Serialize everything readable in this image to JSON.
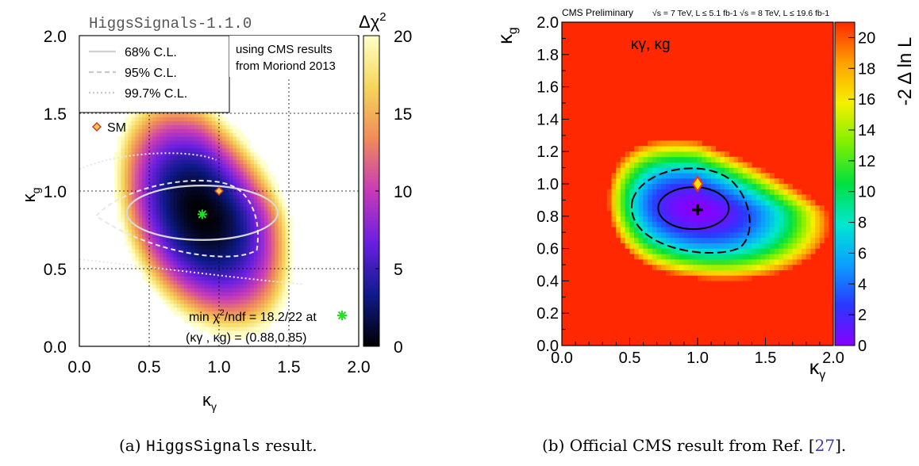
{
  "chart_data": [
    {
      "type": "heatmap",
      "title": "HiggsSignals-1.1.0",
      "annotation": "using CMS results\nfrom Moriond 2013",
      "xlabel": "κγ",
      "ylabel": "κg",
      "xlim": [
        0.0,
        2.0
      ],
      "ylim": [
        0.0,
        2.0
      ],
      "x_ticks": [
        "0.0",
        "0.5",
        "1.0",
        "1.5",
        "2.0"
      ],
      "y_ticks": [
        "0.0",
        "0.5",
        "1.0",
        "1.5",
        "2.0"
      ],
      "grid": true,
      "colorbar": {
        "label": "Δχ2",
        "range": [
          0,
          20
        ],
        "ticks": [
          "0",
          "5",
          "10",
          "15",
          "20"
        ],
        "colors": [
          "#000000",
          "#0f1a8c",
          "#6a1fe0",
          "#c73ab8",
          "#f08a5a",
          "#f6d65a",
          "#ffffc8"
        ]
      },
      "legend": {
        "placement": "top-left",
        "entries": [
          {
            "label": "68% C.L.",
            "style": "solid"
          },
          {
            "label": "95% C.L.",
            "style": "dashed"
          },
          {
            "label": "99.7% C.L.",
            "style": "dotted"
          }
        ],
        "sm_label": "SM"
      },
      "best_fit": {
        "x": 0.88,
        "y": 0.85,
        "text1": "min χ2/ndf =  18.2/22 at",
        "text2": "(κγ , κg) = (0.88,0.85)"
      },
      "sm_point": {
        "x": 1.0,
        "y": 1.0
      }
    },
    {
      "type": "heatmap",
      "title": "CMS Preliminary",
      "energy_label": "√s = 7 TeV, L ≤ 5.1 fb-1  √s = 8 TeV, L ≤ 19.6 fb-1",
      "annotation": "κγ, κg",
      "xlabel": "κγ",
      "ylabel": "κg",
      "xlim": [
        0.0,
        2.0
      ],
      "ylim": [
        0.0,
        2.0
      ],
      "x_ticks": [
        "0.0",
        "0.5",
        "1.0",
        "1.5",
        "2.0"
      ],
      "y_ticks": [
        "0.0",
        "0.2",
        "0.4",
        "0.6",
        "0.8",
        "1.0",
        "1.2",
        "1.4",
        "1.6",
        "1.8",
        "2.0"
      ],
      "colorbar": {
        "label": "-2 Δ ln L",
        "range": [
          0,
          21
        ],
        "ticks": [
          "0",
          "2",
          "4",
          "6",
          "8",
          "10",
          "12",
          "14",
          "16",
          "18",
          "20"
        ],
        "colors": [
          "#8800ff",
          "#2a38ff",
          "#0aa0ff",
          "#00e8d0",
          "#00e040",
          "#7ef000",
          "#f5f000",
          "#ffa000",
          "#ff2800"
        ]
      },
      "best_fit": {
        "x": 1.0,
        "y": 0.84
      },
      "sm_point": {
        "x": 1.0,
        "y": 1.0
      }
    }
  ],
  "captions": {
    "a_prefix": "(a) ",
    "a_code": "HiggsSignals",
    "a_suffix": " result.",
    "b_text": "(b) Official CMS result from Ref. [",
    "b_ref": "27",
    "b_end": "]."
  }
}
